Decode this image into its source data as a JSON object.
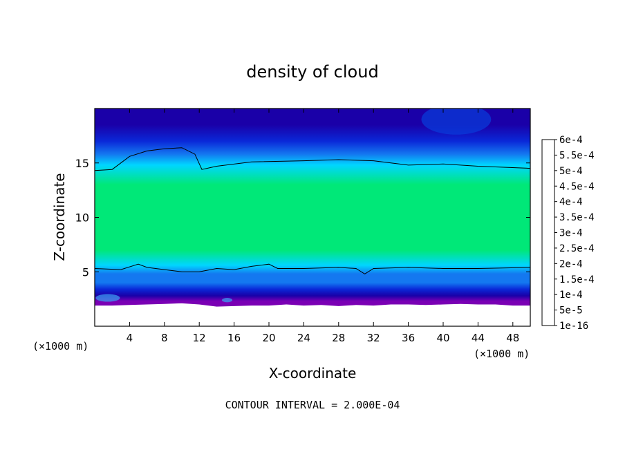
{
  "chart_data": {
    "type": "heatmap",
    "title": "density of cloud",
    "xlabel": "X-coordinate",
    "ylabel": "Z-coordinate",
    "x_unit": "(×1000 m)",
    "y_unit": "(×1000 m)",
    "xlim": [
      0,
      50
    ],
    "ylim": [
      0,
      20
    ],
    "x_ticks": [
      4,
      8,
      12,
      16,
      20,
      24,
      28,
      32,
      36,
      40,
      44,
      48
    ],
    "y_ticks": [
      5,
      10,
      15
    ],
    "footer": "CONTOUR INTERVAL = 2.000E-04",
    "contour_interval": 0.0002,
    "colorbar": {
      "levels": [
        "1e-16",
        "5e-5",
        "1e-4",
        "1.5e-4",
        "2e-4",
        "2.5e-4",
        "3e-4",
        "3.5e-4",
        "4e-4",
        "4.5e-4",
        "5e-4",
        "5.5e-4",
        "6e-4"
      ],
      "colors": [
        "#7a00b4",
        "#1a00a8",
        "#0a28d8",
        "#1478f0",
        "#00d6ff",
        "#00e878",
        "#00e24a",
        "#28d000",
        "#d8f000",
        "#ffc000",
        "#ff7a00",
        "#ff2a00",
        "#ff8a8a"
      ]
    },
    "field_profile": {
      "z_km": [
        0,
        1.8,
        2.3,
        2.8,
        3.4,
        4.0,
        4.8,
        5.6,
        7.0,
        10.0,
        13.0,
        14.8,
        15.8,
        17.0,
        18.5,
        20.0
      ],
      "density": [
        null,
        1e-16,
        3e-05,
        7e-05,
        0.00011,
        0.00015,
        0.00019,
        0.00022,
        0.00025,
        0.00027,
        0.00025,
        0.00021,
        0.00016,
        0.00012,
        9e-05,
        7e-05
      ]
    },
    "contour_lines": [
      {
        "name": "2e-4 upper",
        "x": [
          0,
          2,
          4,
          6,
          8,
          10,
          11.5,
          12.3,
          14,
          18,
          24,
          28,
          32,
          36,
          40,
          44,
          50
        ],
        "z": [
          14.3,
          14.4,
          15.6,
          16.1,
          16.3,
          16.4,
          15.8,
          14.4,
          14.7,
          15.1,
          15.2,
          15.3,
          15.2,
          14.8,
          14.9,
          14.7,
          14.5
        ]
      },
      {
        "name": "2e-4 lower",
        "x": [
          0,
          3,
          5,
          6,
          8,
          10,
          12,
          14,
          16,
          18,
          20,
          21,
          22,
          24,
          28,
          30,
          31,
          32,
          36,
          40,
          44,
          50
        ],
        "z": [
          5.3,
          5.2,
          5.7,
          5.4,
          5.2,
          5.0,
          5.0,
          5.3,
          5.2,
          5.5,
          5.7,
          5.3,
          5.3,
          5.3,
          5.4,
          5.3,
          4.8,
          5.3,
          5.4,
          5.3,
          5.3,
          5.4
        ]
      }
    ],
    "ground_profile": {
      "x": [
        0,
        2,
        4,
        6,
        8,
        10,
        12,
        14,
        16,
        18,
        20,
        22,
        24,
        26,
        28,
        30,
        32,
        34,
        36,
        38,
        40,
        42,
        44,
        46,
        48,
        50
      ],
      "z": [
        1.9,
        1.9,
        1.95,
        2.0,
        2.05,
        2.1,
        2.0,
        1.8,
        1.85,
        1.9,
        1.9,
        2.0,
        1.9,
        1.95,
        1.85,
        1.95,
        1.9,
        2.0,
        2.0,
        1.95,
        2.0,
        2.05,
        2.0,
        2.0,
        1.9,
        1.9
      ]
    },
    "features": [
      {
        "name": "low-density core",
        "x": 41.5,
        "z": 19.0,
        "rx": 4,
        "rz": 1.4,
        "color": "#0a3ad8"
      },
      {
        "name": "low-level patch",
        "x": 1.5,
        "z": 2.6,
        "rx": 1.4,
        "rz": 0.35,
        "color": "#3a9af0"
      },
      {
        "name": "low-level patch",
        "x": 15.2,
        "z": 2.4,
        "rx": 0.6,
        "rz": 0.2,
        "color": "#3a9af0"
      }
    ],
    "grid": false,
    "legend": "right"
  }
}
